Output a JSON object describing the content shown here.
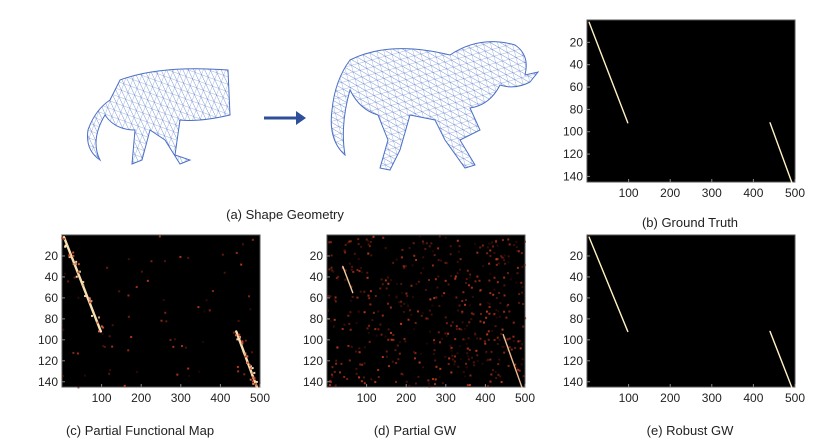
{
  "figure": {
    "captions": {
      "a": "(a) Shape Geometry",
      "b": "(b) Ground Truth",
      "c": "(c) Partial Functional Map",
      "d": "(d) Partial GW",
      "e": "(e) Robust GW"
    },
    "colors": {
      "mesh": "#4a6fc6",
      "arrow": "#2f4f9a",
      "heat_low": "#000000",
      "heat_mid": "#c0391b",
      "heat_high": "#fff2c2"
    },
    "icons": [
      "partial-horse-mesh",
      "arrow-right-icon",
      "full-horse-mesh"
    ]
  },
  "chart_data": [
    {
      "id": "b",
      "type": "heatmap",
      "x_ticks": [
        100,
        200,
        300,
        400,
        500
      ],
      "y_ticks": [
        20,
        40,
        60,
        80,
        100,
        120,
        140
      ],
      "xlim": [
        0,
        500
      ],
      "ylim": [
        0,
        145
      ],
      "segments": [
        {
          "x0": 5,
          "y0": 2,
          "x1": 98,
          "y1": 92,
          "intensity": 1.0
        },
        {
          "x0": 440,
          "y0": 92,
          "x1": 492,
          "y1": 145,
          "intensity": 1.0
        }
      ]
    },
    {
      "id": "c",
      "type": "heatmap",
      "x_ticks": [
        100,
        200,
        300,
        400,
        500
      ],
      "y_ticks": [
        20,
        40,
        60,
        80,
        100,
        120,
        140
      ],
      "xlim": [
        0,
        500
      ],
      "ylim": [
        0,
        145
      ],
      "segments": [
        {
          "x0": 5,
          "y0": 2,
          "x1": 98,
          "y1": 92,
          "intensity": 0.9
        },
        {
          "x0": 440,
          "y0": 92,
          "x1": 492,
          "y1": 145,
          "intensity": 0.9
        }
      ]
    },
    {
      "id": "d",
      "type": "heatmap",
      "x_ticks": [
        100,
        200,
        300,
        400,
        500
      ],
      "y_ticks": [
        20,
        40,
        60,
        80,
        100,
        120,
        140
      ],
      "xlim": [
        0,
        500
      ],
      "ylim": [
        0,
        145
      ],
      "segments": [
        {
          "x0": 40,
          "y0": 30,
          "x1": 65,
          "y1": 55,
          "intensity": 0.8
        },
        {
          "x0": 445,
          "y0": 95,
          "x1": 492,
          "y1": 145,
          "intensity": 0.7
        }
      ]
    },
    {
      "id": "e",
      "type": "heatmap",
      "x_ticks": [
        100,
        200,
        300,
        400,
        500
      ],
      "y_ticks": [
        20,
        40,
        60,
        80,
        100,
        120,
        140
      ],
      "xlim": [
        0,
        500
      ],
      "ylim": [
        0,
        145
      ],
      "segments": [
        {
          "x0": 5,
          "y0": 2,
          "x1": 98,
          "y1": 92,
          "intensity": 1.0
        },
        {
          "x0": 440,
          "y0": 92,
          "x1": 492,
          "y1": 145,
          "intensity": 1.0
        }
      ]
    }
  ]
}
